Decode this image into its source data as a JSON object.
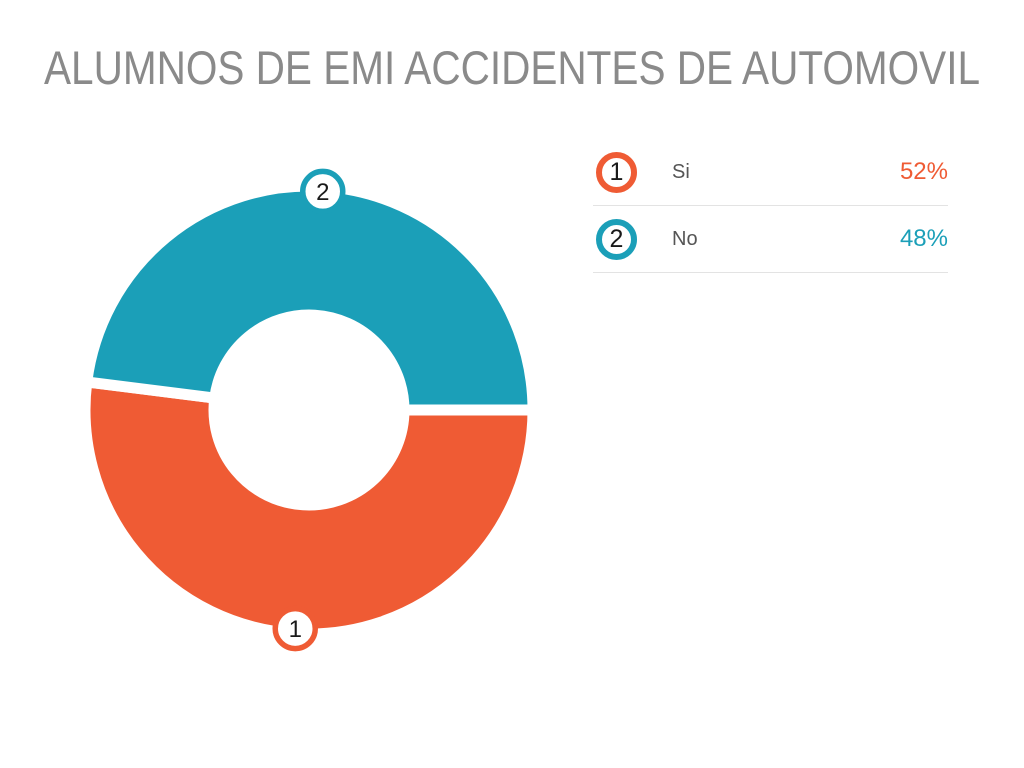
{
  "title": "ALUMNOS DE EMI ACCIDENTES DE AUTOMOVIL",
  "colors": {
    "orange": "#EF5B34",
    "teal": "#1B9FB8",
    "title_gray": "#8A8A8A",
    "label_gray": "#555555",
    "divider_gray": "#E3E3E3",
    "marker_number": "#1A1A1A",
    "background": "#FFFFFF"
  },
  "chart_data": {
    "type": "pie",
    "subtype": "donut",
    "title": "ALUMNOS DE EMI ACCIDENTES DE AUTOMOVIL",
    "labels": [
      "Si",
      "No"
    ],
    "values": [
      52,
      48
    ],
    "value_labels": [
      "52%",
      "48%"
    ],
    "slice_numbers": [
      "1",
      "2"
    ],
    "colors": [
      "#EF5B34",
      "#1B9FB8"
    ],
    "start_angle_deg": 0,
    "direction": "clockwise",
    "legend_position": "right"
  },
  "legend": {
    "rows": [
      {
        "number": "1",
        "label": "Si",
        "value": "52%",
        "color": "#EF5B34"
      },
      {
        "number": "2",
        "label": "No",
        "value": "48%",
        "color": "#1B9FB8"
      }
    ]
  }
}
